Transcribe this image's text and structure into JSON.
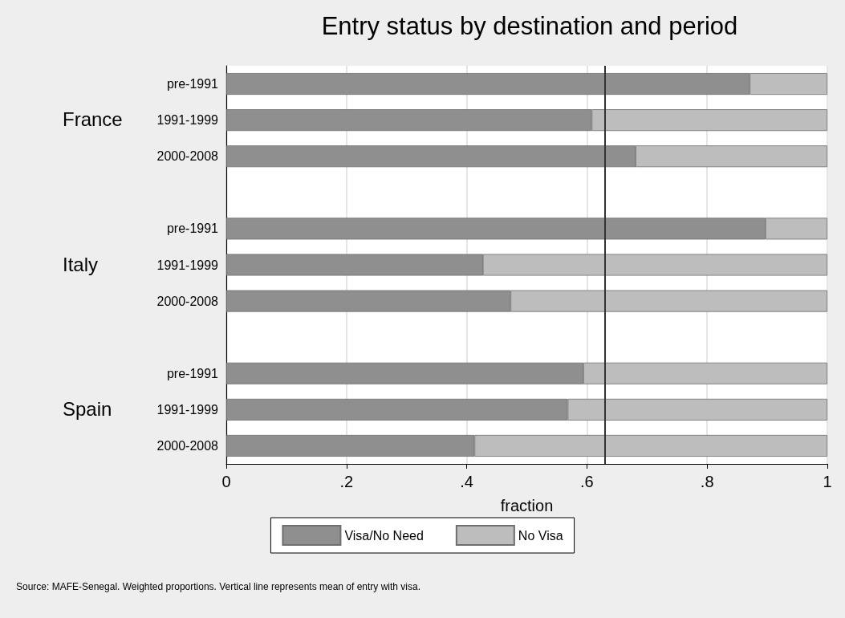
{
  "chart_data": {
    "type": "bar",
    "orientation": "horizontal",
    "stacked": true,
    "title": "Entry status by destination and period",
    "xlabel": "fraction",
    "categories": [
      "pre-1991",
      "1991-1999",
      "2000-2008",
      null,
      "pre-1991",
      "1991-1999",
      "2000-2008",
      null,
      "pre-1991",
      "1991-1999",
      "2000-2008"
    ],
    "series": [
      {
        "name": "Visa/No Need",
        "color": "#8f8f8f",
        "values": [
          0.871,
          0.608,
          0.681,
          null,
          0.897,
          0.427,
          0.473,
          null,
          0.594,
          0.568,
          0.413
        ]
      },
      {
        "name": "No Visa",
        "color": "#bdbdbd",
        "values": [
          0.129,
          0.392,
          0.319,
          null,
          0.103,
          0.573,
          0.527,
          null,
          0.406,
          0.432,
          0.587
        ]
      }
    ],
    "xlim": [
      0,
      1
    ],
    "xticks": [
      0,
      {
        "value": 0.2,
        "label": ".2"
      },
      {
        "value": 0.4,
        "label": ".4"
      },
      {
        "value": 0.6,
        "label": ".6"
      },
      {
        "value": 0.8,
        "label": ".8"
      },
      1
    ],
    "ref_lines": [
      {
        "axis": "x",
        "value": 0.631,
        "label": null,
        "color": "#333333"
      }
    ],
    "annotations": [
      "France",
      "Italy",
      "Spain",
      "Source: MAFE-Senegal. Weighted proportions. Vertical line represents mean of entry with visa."
    ],
    "grid": "x",
    "legend": "bottom"
  }
}
